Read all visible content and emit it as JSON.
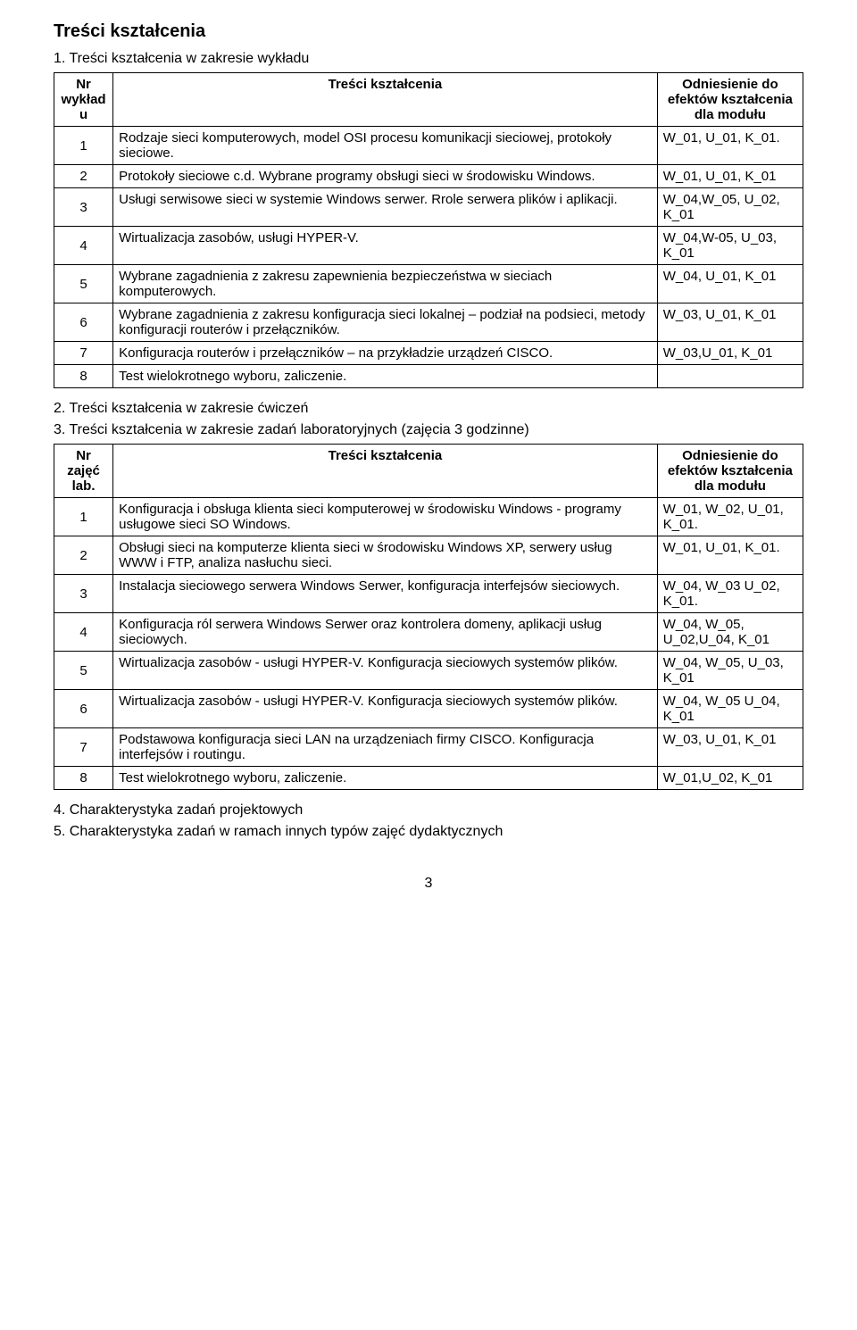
{
  "title": "Treści kształcenia",
  "section1": "1. Treści kształcenia w zakresie wykładu",
  "section2": "2. Treści kształcenia w zakresie ćwiczeń",
  "section3": "3. Treści kształcenia w zakresie zadań laboratoryjnych (zajęcia 3 godzinne)",
  "section4": "4. Charakterystyka zadań projektowych",
  "section5": "5. Charakterystyka zadań w ramach innych typów zajęć dydaktycznych",
  "table1": {
    "head": {
      "c0": "Nr wykładu",
      "c1": "Treści kształcenia",
      "c2": "Odniesienie do efektów kształcenia dla modułu"
    },
    "rows": [
      {
        "nr": "1",
        "content": "Rodzaje sieci komputerowych, model OSI procesu komunikacji sieciowej, protokoły sieciowe.",
        "ref": "W_01, U_01, K_01."
      },
      {
        "nr": "2",
        "content": "Protokoły sieciowe c.d. Wybrane programy obsługi sieci w środowisku Windows.",
        "ref": "W_01, U_01, K_01"
      },
      {
        "nr": "3",
        "content": "Usługi serwisowe sieci w systemie Windows serwer. Rrole serwera plików i aplikacji.",
        "ref": "W_04,W_05, U_02, K_01"
      },
      {
        "nr": "4",
        "content": "Wirtualizacja zasobów, usługi HYPER-V.",
        "ref": "W_04,W-05, U_03, K_01"
      },
      {
        "nr": "5",
        "content": "Wybrane zagadnienia z zakresu zapewnienia bezpieczeństwa w sieciach komputerowych.",
        "ref": "W_04, U_01, K_01"
      },
      {
        "nr": "6",
        "content": "Wybrane zagadnienia z zakresu konfiguracja sieci lokalnej – podział na podsieci, metody konfiguracji routerów i przełączników.",
        "ref": "W_03, U_01, K_01"
      },
      {
        "nr": "7",
        "content": "Konfiguracja routerów i przełączników – na przykładzie urządzeń CISCO.",
        "ref": "W_03,U_01, K_01"
      },
      {
        "nr": "8",
        "content": "Test wielokrotnego wyboru, zaliczenie.",
        "ref": ""
      }
    ]
  },
  "table2": {
    "head": {
      "c0": "Nr zajęć lab.",
      "c1": "Treści kształcenia",
      "c2": "Odniesienie do efektów kształcenia dla modułu"
    },
    "rows": [
      {
        "nr": "1",
        "content": "Konfiguracja i obsługa klienta sieci komputerowej w środowisku Windows - programy usługowe sieci SO Windows.",
        "ref": "W_01, W_02, U_01, K_01."
      },
      {
        "nr": "2",
        "content": "Obsługi sieci na komputerze klienta sieci w środowisku Windows XP, serwery usług WWW i FTP, analiza nasłuchu sieci.",
        "ref": "W_01, U_01, K_01."
      },
      {
        "nr": "3",
        "content": "Instalacja sieciowego serwera Windows Serwer, konfiguracja interfejsów sieciowych.",
        "ref": "W_04, W_03 U_02, K_01."
      },
      {
        "nr": "4",
        "content": "Konfiguracja ról serwera Windows Serwer oraz  kontrolera domeny, aplikacji usług sieciowych.",
        "ref": "W_04, W_05, U_02,U_04, K_01"
      },
      {
        "nr": "5",
        "content": "Wirtualizacja zasobów - usługi HYPER-V. Konfiguracja sieciowych systemów plików.",
        "ref": "W_04, W_05, U_03, K_01"
      },
      {
        "nr": "6",
        "content": "Wirtualizacja zasobów - usługi HYPER-V. Konfiguracja sieciowych systemów plików.",
        "ref": "W_04, W_05 U_04, K_01"
      },
      {
        "nr": "7",
        "content": "Podstawowa konfiguracja sieci LAN na urządzeniach firmy CISCO. Konfiguracja interfejsów i routingu.",
        "ref": "W_03, U_01, K_01"
      },
      {
        "nr": "8",
        "content": "Test wielokrotnego wyboru, zaliczenie.",
        "ref": "W_01,U_02, K_01"
      }
    ]
  },
  "page_number": "3"
}
